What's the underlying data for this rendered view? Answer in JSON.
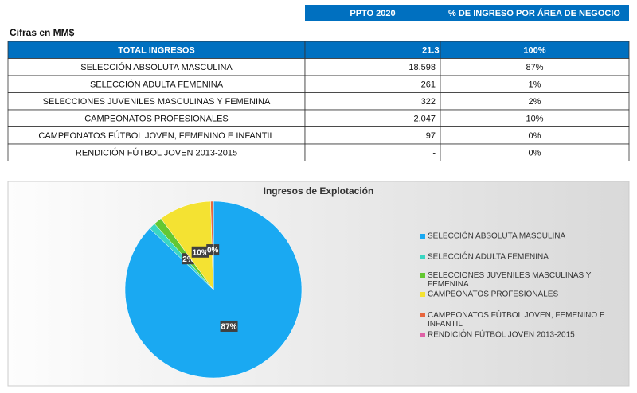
{
  "header": {
    "columns": [
      "PPTO 2020",
      "% DE INGRESO POR ÁREA DE NEGOCIO"
    ]
  },
  "units": "Cifras en MM$",
  "table": {
    "rows": [
      [
        "TOTAL INGRESOS",
        "21.325",
        "100%"
      ],
      [
        "SELECCIÓN ABSOLUTA MASCULINA",
        "18.598",
        "87%"
      ],
      [
        "SELECCIÓN ADULTA FEMENINA",
        "261",
        "1%"
      ],
      [
        "SELECCIONES JUVENILES MASCULINAS Y FEMENINA",
        "322",
        "2%"
      ],
      [
        "CAMPEONATOS PROFESIONALES",
        "2.047",
        "10%"
      ],
      [
        "CAMPEONATOS FÚTBOL JOVEN, FEMENINO E INFANTIL",
        "97",
        "0%"
      ],
      [
        "RENDICIÓN FÚTBOL JOVEN 2013-2015",
        "-",
        "0%"
      ]
    ]
  },
  "chart_data": {
    "type": "pie",
    "title": "Ingresos de Explotación",
    "categories": [
      "SELECCIÓN ABSOLUTA MASCULINA",
      "SELECCIÓN ADULTA FEMENINA",
      "SELECCIONES JUVENILES MASCULINAS Y FEMENINA",
      "CAMPEONATOS PROFESIONALES",
      "CAMPEONATOS FÚTBOL JOVEN, FEMENINO E INFANTIL",
      "RENDICIÓN FÚTBOL JOVEN 2013-2015"
    ],
    "values": [
      87.2,
      1.2,
      1.5,
      9.6,
      0.5,
      0
    ],
    "value_labels": [
      "87%",
      null,
      "2%",
      "10%",
      "0%",
      null
    ],
    "colors": [
      "#1aa9f2",
      "#3ad6c2",
      "#63c832",
      "#f4e232",
      "#e8663e",
      "#df62a6"
    ]
  }
}
